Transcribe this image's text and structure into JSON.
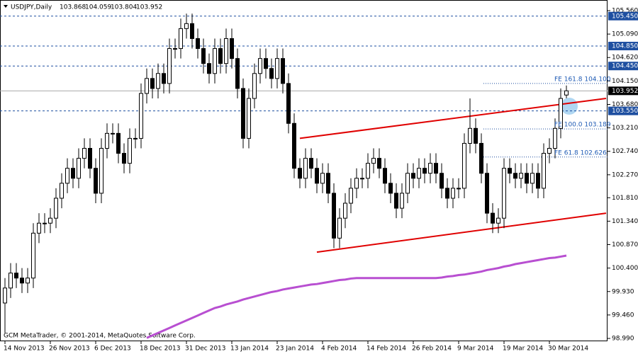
{
  "chart_data": {
    "type": "candlestick",
    "title": "USDJPY,Daily",
    "footer": "GCM MetaTrader, © 2001-2014, MetaQuotes Software Corp.",
    "categories": [
      "14 Nov 2013",
      null,
      null,
      null,
      null,
      null,
      null,
      null,
      "26 Nov 2013",
      null,
      null,
      null,
      null,
      null,
      null,
      null,
      "6 Dec 2013",
      null,
      null,
      null,
      null,
      null,
      null,
      null,
      "18 Dec 2013",
      null,
      null,
      null,
      null,
      null,
      null,
      null,
      "31 Dec 2013",
      null,
      null,
      null,
      null,
      null,
      null,
      null,
      "13 Jan 2014",
      null,
      null,
      null,
      null,
      null,
      null,
      null,
      "23 Jan 2014",
      null,
      null,
      null,
      null,
      null,
      null,
      null,
      "4 Feb 2014",
      null,
      null,
      null,
      null,
      null,
      null,
      null,
      "14 Feb 2014",
      null,
      null,
      null,
      null,
      null,
      null,
      null,
      "26 Feb 2014",
      null,
      null,
      null,
      null,
      null,
      null,
      null,
      "9 Mar 2014",
      null,
      null,
      null,
      null,
      null,
      null,
      null,
      "19 Mar 2014",
      null,
      null,
      null,
      null,
      null,
      null,
      null,
      "30 Mar 2014",
      null,
      null,
      null
    ],
    "candles": [
      [
        99.7,
        100.2,
        99.1,
        100.0
      ],
      [
        100.0,
        100.5,
        99.8,
        100.3
      ],
      [
        100.3,
        100.5,
        100.0,
        100.2
      ],
      [
        100.2,
        100.4,
        99.9,
        100.1
      ],
      [
        100.1,
        100.4,
        99.9,
        100.2
      ],
      [
        100.2,
        101.3,
        100.0,
        101.1
      ],
      [
        101.1,
        101.5,
        100.9,
        101.3
      ],
      [
        101.3,
        101.5,
        101.1,
        101.3
      ],
      [
        101.3,
        101.6,
        101.1,
        101.4
      ],
      [
        101.4,
        102.0,
        101.2,
        101.8
      ],
      [
        101.8,
        102.3,
        101.6,
        102.1
      ],
      [
        102.1,
        102.6,
        101.9,
        102.4
      ],
      [
        102.4,
        102.6,
        102.0,
        102.2
      ],
      [
        102.2,
        102.8,
        102.0,
        102.6
      ],
      [
        102.6,
        103.0,
        102.4,
        102.8
      ],
      [
        102.8,
        103.0,
        102.2,
        102.4
      ],
      [
        102.4,
        102.6,
        101.7,
        101.9
      ],
      [
        101.9,
        103.0,
        101.7,
        102.8
      ],
      [
        102.8,
        103.3,
        102.6,
        103.1
      ],
      [
        103.1,
        103.3,
        102.9,
        103.1
      ],
      [
        103.1,
        103.3,
        102.5,
        102.7
      ],
      [
        102.7,
        102.9,
        102.3,
        102.5
      ],
      [
        102.5,
        103.2,
        102.3,
        103.0
      ],
      [
        103.0,
        103.2,
        102.8,
        103.0
      ],
      [
        103.0,
        104.1,
        102.8,
        103.9
      ],
      [
        103.9,
        104.4,
        103.7,
        104.2
      ],
      [
        104.2,
        104.4,
        103.8,
        104.0
      ],
      [
        104.0,
        104.5,
        103.8,
        104.3
      ],
      [
        104.3,
        104.5,
        103.9,
        104.1
      ],
      [
        104.1,
        105.0,
        103.9,
        104.8
      ],
      [
        104.8,
        105.0,
        104.6,
        104.8
      ],
      [
        104.8,
        105.4,
        104.6,
        105.2
      ],
      [
        105.2,
        105.5,
        105.0,
        105.3
      ],
      [
        105.3,
        105.5,
        104.8,
        105.0
      ],
      [
        105.0,
        105.2,
        104.6,
        104.8
      ],
      [
        104.8,
        105.0,
        104.3,
        104.5
      ],
      [
        104.5,
        104.7,
        104.1,
        104.3
      ],
      [
        104.3,
        105.0,
        104.1,
        104.8
      ],
      [
        104.8,
        105.0,
        104.3,
        104.5
      ],
      [
        104.5,
        105.2,
        104.3,
        105.0
      ],
      [
        105.0,
        105.2,
        104.4,
        104.6
      ],
      [
        104.6,
        104.8,
        103.8,
        104.0
      ],
      [
        104.0,
        104.2,
        102.8,
        103.0
      ],
      [
        103.0,
        104.0,
        102.8,
        103.8
      ],
      [
        103.8,
        104.5,
        103.6,
        104.3
      ],
      [
        104.3,
        104.8,
        104.1,
        104.6
      ],
      [
        104.6,
        104.8,
        104.2,
        104.4
      ],
      [
        104.4,
        104.6,
        104.0,
        104.2
      ],
      [
        104.2,
        104.8,
        104.0,
        104.6
      ],
      [
        104.6,
        104.8,
        103.9,
        104.1
      ],
      [
        104.1,
        104.3,
        103.1,
        103.3
      ],
      [
        103.3,
        103.5,
        102.2,
        102.4
      ],
      [
        102.4,
        102.6,
        102.0,
        102.2
      ],
      [
        102.2,
        102.8,
        102.0,
        102.6
      ],
      [
        102.6,
        102.8,
        102.2,
        102.4
      ],
      [
        102.4,
        102.6,
        101.9,
        102.1
      ],
      [
        102.1,
        102.5,
        101.9,
        102.3
      ],
      [
        102.3,
        102.5,
        101.7,
        101.9
      ],
      [
        101.9,
        102.1,
        100.8,
        101.0
      ],
      [
        101.0,
        101.6,
        100.8,
        101.4
      ],
      [
        101.4,
        101.9,
        101.2,
        101.7
      ],
      [
        101.7,
        102.2,
        101.5,
        102.0
      ],
      [
        102.0,
        102.4,
        101.8,
        102.2
      ],
      [
        102.2,
        102.4,
        102.0,
        102.2
      ],
      [
        102.2,
        102.7,
        102.0,
        102.5
      ],
      [
        102.5,
        102.8,
        102.3,
        102.6
      ],
      [
        102.6,
        102.8,
        102.2,
        102.4
      ],
      [
        102.4,
        102.6,
        101.9,
        102.1
      ],
      [
        102.1,
        102.3,
        101.7,
        101.9
      ],
      [
        101.9,
        102.1,
        101.4,
        101.6
      ],
      [
        101.6,
        102.1,
        101.4,
        101.9
      ],
      [
        101.9,
        102.5,
        101.7,
        102.3
      ],
      [
        102.3,
        102.5,
        102.0,
        102.2
      ],
      [
        102.2,
        102.6,
        102.0,
        102.4
      ],
      [
        102.4,
        102.6,
        102.1,
        102.3
      ],
      [
        102.3,
        102.7,
        102.1,
        102.5
      ],
      [
        102.5,
        102.7,
        102.1,
        102.3
      ],
      [
        102.3,
        102.5,
        101.8,
        102.0
      ],
      [
        102.0,
        102.2,
        101.6,
        101.8
      ],
      [
        101.8,
        102.2,
        101.6,
        102.0
      ],
      [
        102.0,
        102.2,
        101.8,
        102.0
      ],
      [
        102.0,
        103.1,
        101.8,
        102.9
      ],
      [
        102.9,
        103.8,
        102.7,
        103.2
      ],
      [
        103.2,
        103.4,
        102.7,
        102.9
      ],
      [
        102.9,
        103.1,
        102.1,
        102.3
      ],
      [
        102.3,
        102.5,
        101.3,
        101.5
      ],
      [
        101.5,
        101.7,
        101.1,
        101.3
      ],
      [
        101.3,
        101.6,
        101.1,
        101.4
      ],
      [
        101.4,
        102.6,
        101.2,
        102.4
      ],
      [
        102.4,
        102.6,
        102.1,
        102.3
      ],
      [
        102.3,
        102.5,
        102.0,
        102.2
      ],
      [
        102.2,
        102.5,
        102.0,
        102.3
      ],
      [
        102.3,
        102.5,
        101.9,
        102.1
      ],
      [
        102.1,
        102.5,
        101.9,
        102.3
      ],
      [
        102.3,
        102.5,
        101.8,
        102.0
      ],
      [
        102.0,
        102.9,
        101.8,
        102.7
      ],
      [
        102.7,
        103.0,
        102.5,
        102.8
      ],
      [
        102.8,
        103.4,
        102.6,
        103.2
      ],
      [
        103.2,
        104.0,
        103.0,
        103.8
      ],
      [
        103.868,
        104.059,
        103.804,
        103.952
      ]
    ],
    "ma": {
      "color": "#b84fd1",
      "values": [
        null,
        null,
        null,
        null,
        null,
        null,
        null,
        null,
        null,
        null,
        null,
        null,
        null,
        null,
        null,
        null,
        null,
        null,
        null,
        null,
        null,
        null,
        null,
        null,
        null,
        99.0,
        99.05,
        99.1,
        99.15,
        99.2,
        99.25,
        99.3,
        99.35,
        99.4,
        99.45,
        99.5,
        99.55,
        99.6,
        99.63,
        99.67,
        99.7,
        99.73,
        99.77,
        99.8,
        99.83,
        99.86,
        99.89,
        99.92,
        99.94,
        99.97,
        99.99,
        100.01,
        100.03,
        100.05,
        100.07,
        100.08,
        100.1,
        100.12,
        100.14,
        100.16,
        100.17,
        100.19,
        100.2,
        100.2,
        100.2,
        100.2,
        100.2,
        100.2,
        100.2,
        100.2,
        100.2,
        100.2,
        100.2,
        100.2,
        100.2,
        100.2,
        100.2,
        100.21,
        100.23,
        100.24,
        100.26,
        100.27,
        100.29,
        100.31,
        100.33,
        100.36,
        100.38,
        100.4,
        100.43,
        100.45,
        100.48,
        100.5,
        100.52,
        100.54,
        100.56,
        100.58,
        100.6,
        100.61,
        100.63,
        100.65
      ]
    },
    "trendlines": [
      {
        "color": "#e00000",
        "x": [
          52,
          106
        ],
        "y": [
          103.0,
          103.8
        ]
      },
      {
        "color": "#e00000",
        "x": [
          55,
          106
        ],
        "y": [
          100.72,
          101.5
        ]
      }
    ],
    "levels": [
      {
        "value": 105.45,
        "label": "105.450"
      },
      {
        "value": 104.85,
        "label": "104.850"
      },
      {
        "value": 104.45,
        "label": "104.450"
      },
      {
        "value": 103.55,
        "label": "103.550"
      }
    ],
    "current": {
      "value": 103.952,
      "label": "103.952"
    },
    "annotations": [
      {
        "value": 104.1,
        "label": "FE 161.8 104.100"
      },
      {
        "value": 103.189,
        "label": "FE 100.0 103.189"
      },
      {
        "value": 102.626,
        "label": "FE 61.8 102.626"
      }
    ],
    "ylim": [
      98.99,
      105.56
    ],
    "yticks": [
      {
        "value": 105.56,
        "label": "105.560"
      },
      {
        "value": 105.09,
        "label": "105.090"
      },
      {
        "value": 104.62,
        "label": "104.620"
      },
      {
        "value": 104.15,
        "label": "104.150"
      },
      {
        "value": 103.68,
        "label": "103.680"
      },
      {
        "value": 103.21,
        "label": "103.210"
      },
      {
        "value": 102.74,
        "label": "102.740"
      },
      {
        "value": 102.27,
        "label": "102.270"
      },
      {
        "value": 101.81,
        "label": "101.810"
      },
      {
        "value": 101.34,
        "label": "101.340"
      },
      {
        "value": 100.87,
        "label": "100.870"
      },
      {
        "value": 100.4,
        "label": "100.400"
      },
      {
        "value": 99.93,
        "label": "99.930"
      },
      {
        "value": 99.46,
        "label": "99.460"
      },
      {
        "value": 98.99,
        "label": "98.990"
      }
    ]
  }
}
